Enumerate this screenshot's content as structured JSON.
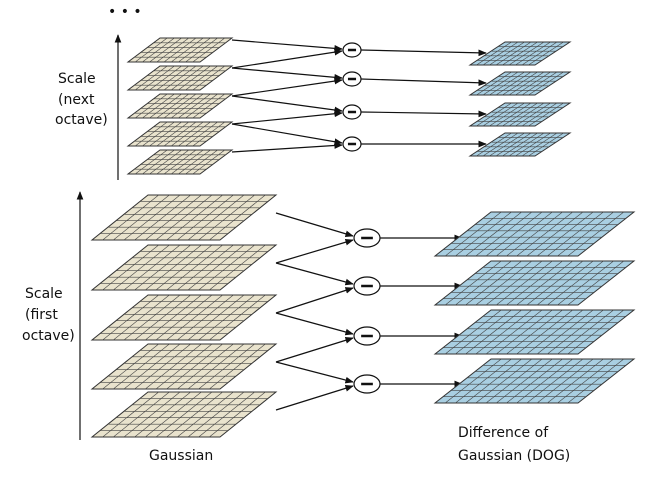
{
  "ellipsis": "• • •",
  "next_octave_label": [
    "Scale",
    "(next",
    "octave)"
  ],
  "first_octave_label": [
    "Scale",
    "(first",
    "octave)"
  ],
  "gaussian_label": "Gaussian",
  "dog_label": [
    "Difference of",
    "Gaussian (DOG)"
  ]
}
